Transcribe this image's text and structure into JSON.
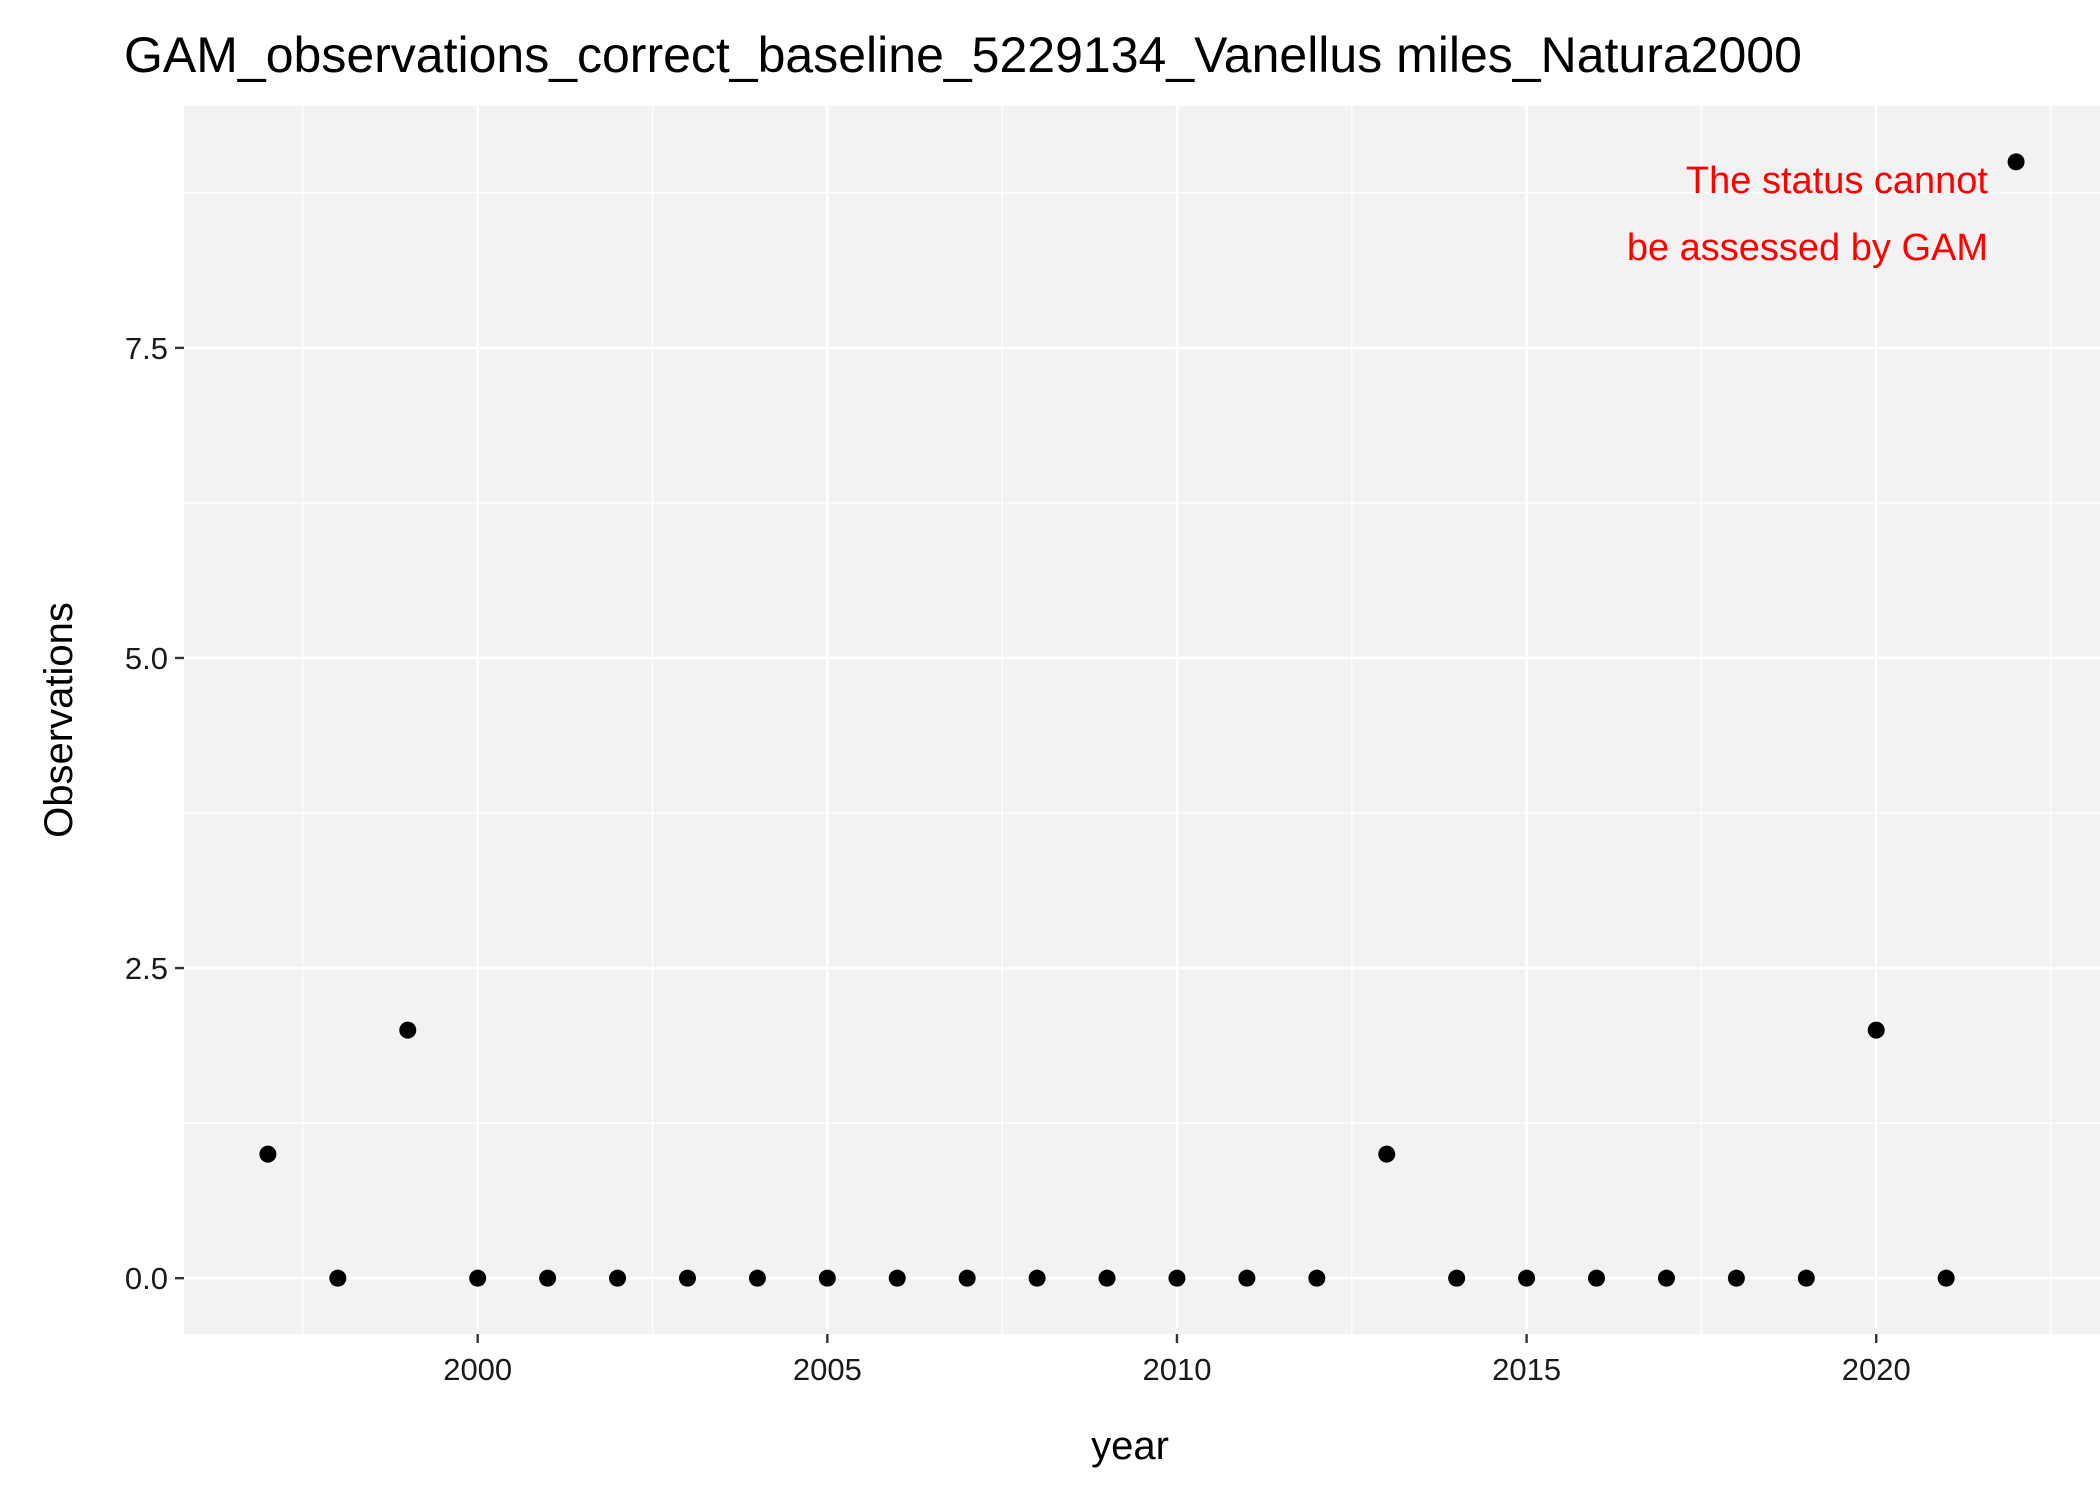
{
  "chart_data": {
    "type": "scatter",
    "title": "GAM_observations_correct_baseline_5229134_Vanellus miles_Natura2000",
    "xlabel": "year",
    "ylabel": "Observations",
    "xlim": [
      1995.8,
      2023.2
    ],
    "ylim": [
      -0.45,
      9.45
    ],
    "x_ticks": [
      2000,
      2005,
      2010,
      2015,
      2020
    ],
    "x_tick_labels": [
      "2000",
      "2005",
      "2010",
      "2015",
      "2020"
    ],
    "y_ticks": [
      0,
      2.5,
      5,
      7.5
    ],
    "y_tick_labels": [
      "0.0",
      "2.5",
      "5.0",
      "7.5"
    ],
    "grid": true,
    "x": [
      1997,
      1998,
      1999,
      2000,
      2001,
      2002,
      2003,
      2004,
      2005,
      2006,
      2007,
      2008,
      2009,
      2010,
      2011,
      2012,
      2013,
      2014,
      2015,
      2016,
      2017,
      2018,
      2019,
      2020,
      2021,
      2022
    ],
    "y": [
      1,
      0,
      2,
      0,
      0,
      0,
      0,
      0,
      0,
      0,
      0,
      0,
      0,
      0,
      0,
      0,
      1,
      0,
      0,
      0,
      0,
      0,
      0,
      2,
      0,
      9
    ],
    "annotation": {
      "lines": [
        "The status cannot",
        "be assessed by GAM"
      ],
      "color": "#ff0000"
    },
    "colors": {
      "panel": "#f2f2f2",
      "grid": "#ffffff",
      "point": "#000000",
      "tick_text": "#1a1a1a",
      "tick_mark": "#333333"
    }
  }
}
